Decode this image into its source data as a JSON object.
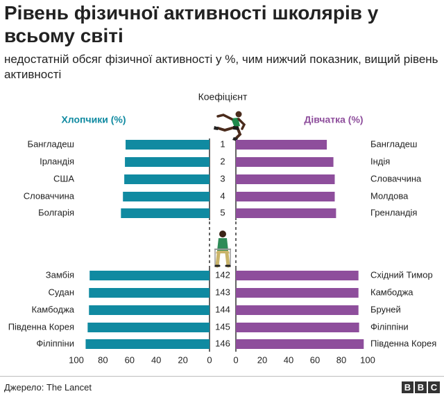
{
  "title": "Рівень фізичної активності школярів у всьому світі",
  "subtitle": "недостатній обсяг фізичної активності у %, чим нижчий показник, вищий рівень активності",
  "source": "Джерело: The Lancet",
  "logo": [
    "B",
    "B",
    "C"
  ],
  "colors": {
    "boys": "#108aa1",
    "girls": "#8e4e9c",
    "text": "#222222",
    "axis": "#222222"
  },
  "chart_data": {
    "type": "bar",
    "orientation": "horizontal",
    "layout": "back-to-back",
    "center_label": "Коефіцієнт",
    "xlim": [
      0,
      100
    ],
    "ticks": [
      100,
      80,
      60,
      40,
      20,
      0
    ],
    "top_group": {
      "ranks": [
        "1",
        "2",
        "3",
        "4",
        "5"
      ],
      "boys": {
        "name": "Хлопчики (%)",
        "countries": [
          "Бангладеш",
          "Ірландія",
          "США",
          "Словаччина",
          "Болгарія"
        ],
        "values": [
          63,
          63.5,
          64,
          65,
          66.5
        ]
      },
      "girls": {
        "name": "Дівчатка (%)",
        "countries": [
          "Бангладеш",
          "Індія",
          "Словаччина",
          "Молдова",
          "Гренландія"
        ],
        "values": [
          69,
          74,
          75,
          75,
          76
        ]
      }
    },
    "bottom_group": {
      "ranks": [
        "142",
        "143",
        "144",
        "145",
        "146"
      ],
      "boys": {
        "countries": [
          "Замбія",
          "Судан",
          "Камбоджа",
          "Південна Корея",
          "Філіппіни"
        ],
        "values": [
          90,
          90.5,
          90.5,
          91.5,
          93
        ]
      },
      "girls": {
        "countries": [
          "Східний Тимор",
          "Камбоджа",
          "Бруней",
          "Філіппіни",
          "Південна Корея"
        ],
        "values": [
          93,
          93,
          93,
          93.5,
          97
        ]
      }
    }
  }
}
